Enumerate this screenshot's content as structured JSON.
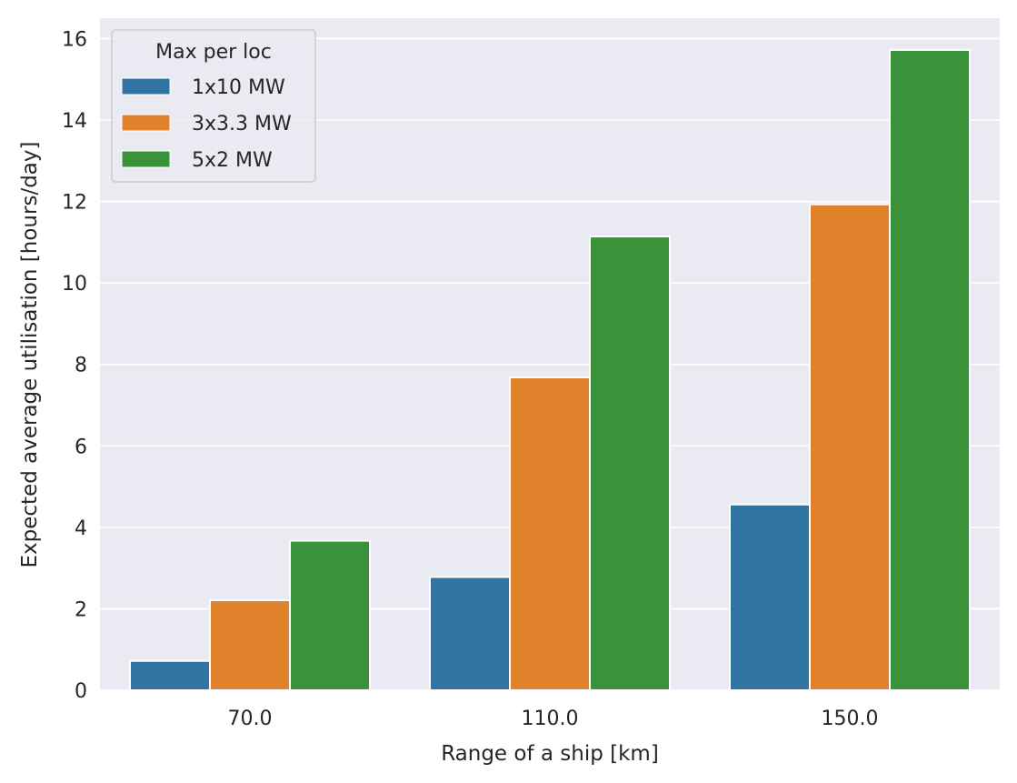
{
  "chart_data": {
    "type": "bar",
    "title": "",
    "xlabel": "Range of a ship [km]",
    "ylabel": "Expected average utilisation [hours/day]",
    "categories": [
      "70.0",
      "110.0",
      "150.0"
    ],
    "series": [
      {
        "name": "1x10 MW",
        "color": "#3274a1",
        "values": [
          0.72,
          2.78,
          4.56
        ]
      },
      {
        "name": "3x3.3 MW",
        "color": "#e1812c",
        "values": [
          2.21,
          7.68,
          11.93
        ]
      },
      {
        "name": "5x2 MW",
        "color": "#3a923a",
        "values": [
          3.67,
          11.14,
          15.72
        ]
      }
    ],
    "ylim": [
      0,
      16.5
    ],
    "yticks": [
      "0",
      "2",
      "4",
      "6",
      "8",
      "10",
      "12",
      "14",
      "16"
    ],
    "legend": {
      "title": "Max per loc",
      "placement": "top-left"
    },
    "grid": true,
    "background": "#eaeaf2",
    "grid_color": "#ffffff"
  }
}
